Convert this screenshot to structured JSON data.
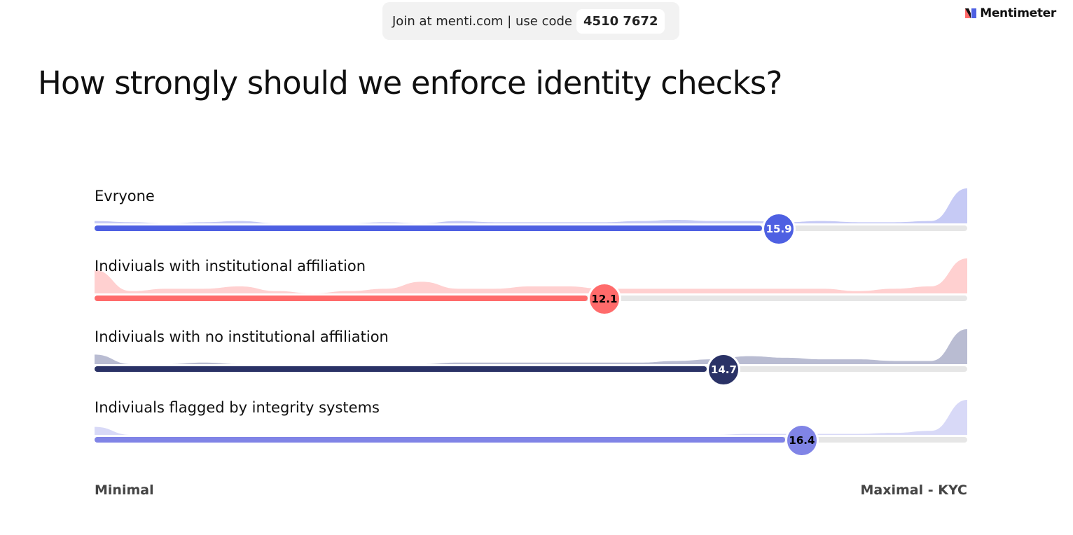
{
  "header": {
    "join_text": "Join at menti.com | use code",
    "code": "4510 7672",
    "brand": "Mentimeter"
  },
  "question": "How strongly should we enforce identity checks?",
  "scale": {
    "min": 1,
    "max": 20,
    "min_label": "Minimal",
    "max_label": "Maximal - KYC"
  },
  "statements": [
    {
      "label": "Evryone",
      "value": 15.9,
      "color": "#4e60e2",
      "dist_color": "#c6caf5",
      "text_color": "#ffffff",
      "distribution": [
        2,
        1,
        0,
        1,
        2,
        0,
        0,
        0,
        1,
        0,
        2,
        1,
        1,
        1,
        1,
        2,
        3,
        2,
        2,
        1,
        2,
        1,
        1,
        2,
        30
      ]
    },
    {
      "label": "Indiviuals with institutional affiliation",
      "value": 12.1,
      "color": "#ff6b6b",
      "dist_color": "#ffd0d0",
      "text_color": "#000000",
      "distribution": [
        10,
        1,
        2,
        2,
        3,
        1,
        0,
        1,
        2,
        5,
        2,
        2,
        3,
        3,
        2,
        2,
        2,
        2,
        2,
        2,
        2,
        1,
        2,
        3,
        15
      ]
    },
    {
      "label": "Indiviuals with no institutional affiliation",
      "value": 14.7,
      "color": "#2a3266",
      "dist_color": "#b9bcd2",
      "text_color": "#ffffff",
      "distribution": [
        6,
        0,
        0,
        1,
        0,
        0,
        0,
        0,
        0,
        0,
        1,
        1,
        1,
        1,
        1,
        1,
        2,
        3,
        5,
        4,
        3,
        3,
        2,
        2,
        22
      ]
    },
    {
      "label": "Indiviuals flagged by integrity systems",
      "value": 16.4,
      "color": "#8084e6",
      "dist_color": "#d8d9f7",
      "text_color": "#000000",
      "distribution": [
        8,
        0,
        0,
        0,
        0,
        0,
        0,
        0,
        0,
        0,
        0,
        0,
        0,
        0,
        0,
        0,
        0,
        0,
        1,
        1,
        1,
        1,
        2,
        4,
        35
      ]
    }
  ]
}
